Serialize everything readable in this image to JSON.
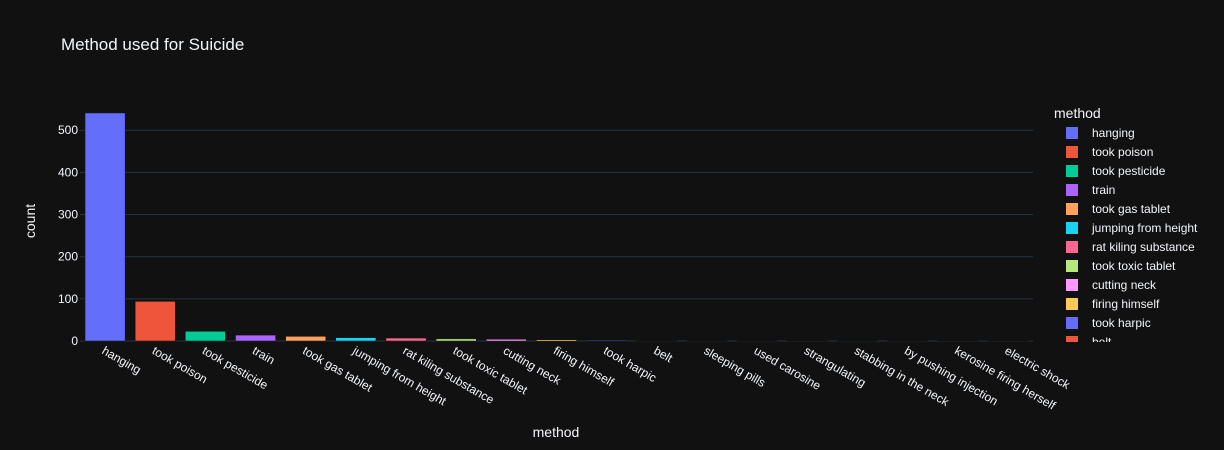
{
  "chart_data": {
    "type": "bar",
    "title": "Method used for Suicide",
    "xlabel": "method",
    "ylabel": "count",
    "ylim": [
      0,
      548
    ],
    "yticks": [
      0,
      100,
      200,
      300,
      400,
      500
    ],
    "grid": true,
    "legend_title": "method",
    "legend_position": "right",
    "categories": [
      "hanging",
      "took poison",
      "took pesticide",
      "train",
      "took gas tablet",
      "jumping from height",
      "rat kiling substance",
      "took toxic tablet",
      "cutting neck",
      "firing himself",
      "took harpic",
      "belt",
      "sleeping pills",
      "used carosine",
      "strangulating",
      "stabbing in the neck",
      "by pushing injection",
      "kerosine firing herself",
      "electric shock"
    ],
    "values": [
      541,
      94,
      23,
      14,
      11,
      8,
      7,
      5,
      4,
      3,
      2,
      1,
      1,
      1,
      1,
      1,
      1,
      1,
      1
    ],
    "colors": [
      "#636efa",
      "#EF553B",
      "#00cc96",
      "#ab63fa",
      "#FFA15A",
      "#19d3f3",
      "#FF6692",
      "#B6E880",
      "#FF97FF",
      "#FECB52",
      "#636efa",
      "#EF553B",
      "#00cc96",
      "#ab63fa",
      "#FFA15A",
      "#19d3f3",
      "#FF6692",
      "#B6E880",
      "#FF97FF"
    ],
    "legend_visible": [
      "hanging",
      "took poison",
      "took pesticide",
      "train",
      "took gas tablet",
      "jumping from height",
      "rat kiling substance",
      "took toxic tablet",
      "cutting neck",
      "firing himself",
      "took harpic",
      "belt"
    ]
  }
}
